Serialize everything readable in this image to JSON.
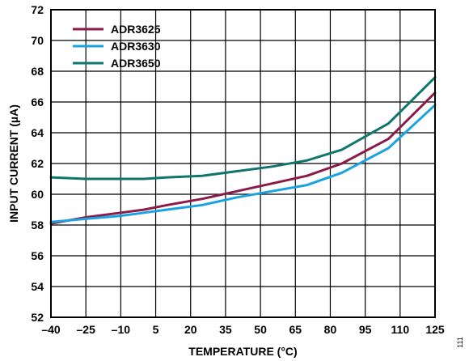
{
  "chart_data": {
    "type": "line",
    "xlabel": "TEMPERATURE (°C)",
    "ylabel": "INPUT CURRENT (µA)",
    "xlim": [
      -40,
      125
    ],
    "ylim": [
      52,
      72
    ],
    "x_ticks": [
      -40,
      -25,
      -10,
      5,
      20,
      35,
      50,
      65,
      80,
      95,
      110,
      125
    ],
    "x_tick_labels": [
      "–40",
      "–25",
      "–10",
      "5",
      "20",
      "35",
      "50",
      "65",
      "80",
      "95",
      "110",
      "125"
    ],
    "y_ticks": [
      52,
      54,
      56,
      58,
      60,
      62,
      64,
      66,
      68,
      70,
      72
    ],
    "y_tick_labels": [
      "52",
      "54",
      "56",
      "58",
      "60",
      "62",
      "64",
      "66",
      "68",
      "70",
      "72"
    ],
    "grid": true,
    "legend_position": "top-left",
    "series": [
      {
        "name": "ADR3625",
        "color": "#8b1c48",
        "x": [
          -40,
          -25,
          -10,
          0,
          10,
          25,
          40,
          55,
          70,
          85,
          105,
          125
        ],
        "y": [
          58.1,
          58.5,
          58.8,
          59.0,
          59.3,
          59.7,
          60.2,
          60.7,
          61.2,
          62.0,
          63.6,
          66.6
        ]
      },
      {
        "name": "ADR3630",
        "color": "#1aa3e0",
        "x": [
          -40,
          -25,
          -10,
          0,
          10,
          25,
          40,
          55,
          70,
          85,
          105,
          125
        ],
        "y": [
          58.2,
          58.4,
          58.6,
          58.8,
          59.0,
          59.3,
          59.8,
          60.2,
          60.6,
          61.4,
          63.0,
          65.8
        ]
      },
      {
        "name": "ADR3650",
        "color": "#0f766e",
        "x": [
          -40,
          -25,
          -10,
          0,
          10,
          25,
          40,
          55,
          70,
          85,
          105,
          125
        ],
        "y": [
          61.1,
          61.0,
          61.0,
          61.0,
          61.1,
          61.2,
          61.5,
          61.8,
          62.2,
          62.9,
          64.6,
          67.6
        ]
      }
    ],
    "figure_number": "111"
  }
}
